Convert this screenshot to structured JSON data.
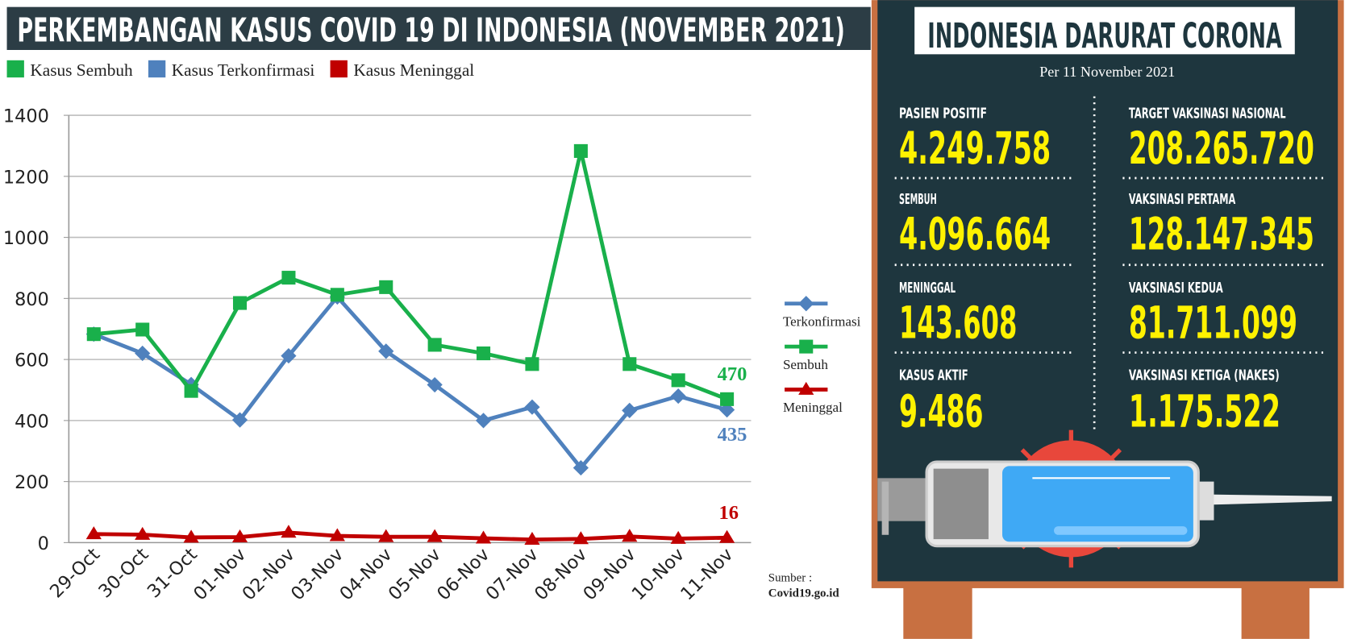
{
  "chart_data": {
    "type": "line",
    "title": "PERKEMBANGAN KASUS COVID 19 DI INDONESIA (NOVEMBER 2021)",
    "categories": [
      "29-Oct",
      "30-Oct",
      "31-Oct",
      "01-Nov",
      "02-Nov",
      "03-Nov",
      "04-Nov",
      "05-Nov",
      "06-Nov",
      "07-Nov",
      "08-Nov",
      "09-Nov",
      "10-Nov",
      "11-Nov"
    ],
    "series": [
      {
        "name": "Kasus Sembuh",
        "color": "#19b04b",
        "marker": "square",
        "values": [
          683,
          698,
          497,
          785,
          868,
          812,
          837,
          648,
          620,
          585,
          1283,
          585,
          532,
          470
        ]
      },
      {
        "name": "Kasus Terkonfirmasi",
        "color": "#4f81bd",
        "marker": "diamond",
        "values": [
          683,
          620,
          518,
          402,
          612,
          805,
          627,
          517,
          400,
          444,
          245,
          433,
          480,
          435
        ]
      },
      {
        "name": "Kasus Meninggal",
        "color": "#c00000",
        "marker": "triangle",
        "values": [
          28,
          26,
          17,
          18,
          33,
          22,
          19,
          19,
          14,
          10,
          12,
          20,
          13,
          16
        ]
      }
    ],
    "side_legend": [
      "Terkonfirmasi",
      "Sembuh",
      "Meninggal"
    ],
    "ylim": [
      0,
      1400
    ],
    "yticks": [
      0,
      200,
      400,
      600,
      800,
      1000,
      1200,
      1400
    ],
    "grid": true,
    "source": [
      "Sumber :",
      "Covid19.go.id"
    ]
  },
  "panel": {
    "title": "INDONESIA DARURAT CORONA",
    "date": "Per 11 November 2021",
    "stats": [
      {
        "label": "PASIEN POSITIF",
        "value": "4.249.758"
      },
      {
        "label": "SEMBUH",
        "value": "4.096.664"
      },
      {
        "label": "MENINGGAL",
        "value": "143.608"
      },
      {
        "label": "KASUS AKTIF",
        "value": "9.486"
      },
      {
        "label": "TARGET VAKSINASI NASIONAL",
        "value": "208.265.720"
      },
      {
        "label": "VAKSINASI PERTAMA",
        "value": "128.147.345"
      },
      {
        "label": "VAKSINASI KEDUA",
        "value": "81.711.099"
      },
      {
        "label": "VAKSINASI KETIGA (NAKES)",
        "value": "1.175.522"
      }
    ]
  }
}
